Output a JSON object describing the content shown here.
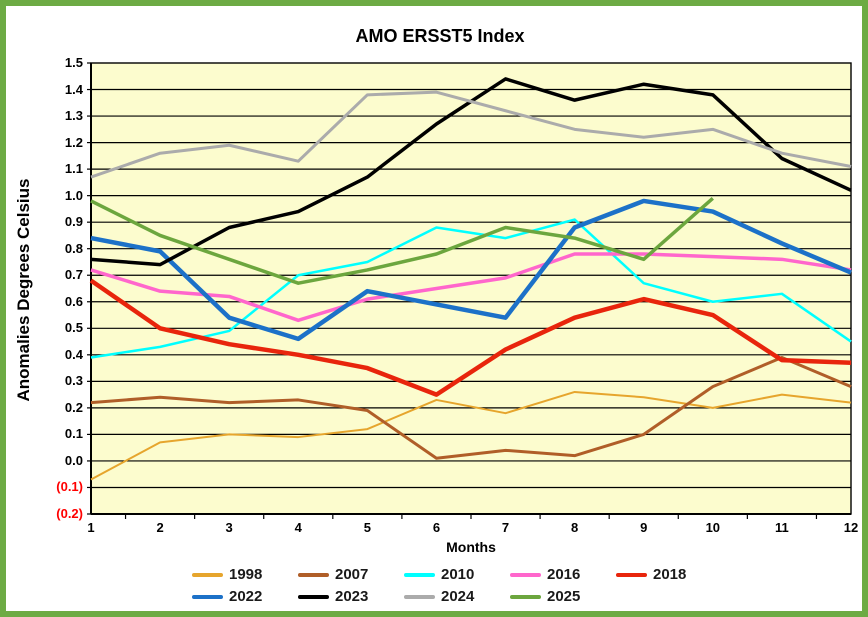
{
  "frame_color": "#6DAB44",
  "chart_data": {
    "type": "line",
    "title": "AMO ERSST5 Index",
    "xlabel": "Months",
    "ylabel": "Anomalies Degrees Celsius",
    "x": [
      1,
      2,
      3,
      4,
      5,
      6,
      7,
      8,
      9,
      10,
      11,
      12
    ],
    "x_tick_labels": [
      "1",
      "2",
      "3",
      "4",
      "5",
      "6",
      "7",
      "8",
      "9",
      "10",
      "11",
      "12"
    ],
    "y_tick_labels": [
      "1.5",
      "1.4",
      "1.3",
      "1.2",
      "1.1",
      "1.0",
      "0.9",
      "0.8",
      "0.7",
      "0.6",
      "0.5",
      "0.4",
      "0.3",
      "0.2",
      "0.1",
      "0.0",
      "(0.1)",
      "(0.2)"
    ],
    "ylim": [
      -0.2,
      1.5
    ],
    "grid": "horizontal every 0.1",
    "plot_bg": "#FCFCCE",
    "negative_label_color": "#FF0000",
    "legend_position": "bottom",
    "series": [
      {
        "name": "1998",
        "color": "#E6A52D",
        "width": 2,
        "values": [
          -0.07,
          0.07,
          0.1,
          0.09,
          0.12,
          0.23,
          0.18,
          0.26,
          0.24,
          0.2,
          0.25,
          0.22
        ]
      },
      {
        "name": "2007",
        "color": "#B05E28",
        "width": 3,
        "values": [
          0.22,
          0.24,
          0.22,
          0.23,
          0.19,
          0.01,
          0.04,
          0.02,
          0.1,
          0.28,
          0.39,
          0.28
        ]
      },
      {
        "name": "2010",
        "color": "#00FFFF",
        "width": 2.5,
        "values": [
          0.39,
          0.43,
          0.49,
          0.7,
          0.75,
          0.88,
          0.84,
          0.91,
          0.67,
          0.6,
          0.63,
          0.45
        ]
      },
      {
        "name": "2016",
        "color": "#FF66CC",
        "width": 3.5,
        "values": [
          0.72,
          0.64,
          0.62,
          0.53,
          0.61,
          0.65,
          0.69,
          0.78,
          0.78,
          0.77,
          0.76,
          0.72
        ]
      },
      {
        "name": "2018",
        "color": "#E8250C",
        "width": 4.5,
        "values": [
          0.68,
          0.5,
          0.44,
          0.4,
          0.35,
          0.25,
          0.42,
          0.54,
          0.61,
          0.55,
          0.38,
          0.37
        ]
      },
      {
        "name": "2022",
        "color": "#1C71C8",
        "width": 4.5,
        "values": [
          0.84,
          0.79,
          0.54,
          0.46,
          0.64,
          0.59,
          0.54,
          0.88,
          0.98,
          0.94,
          0.82,
          0.71
        ]
      },
      {
        "name": "2023",
        "color": "#000000",
        "width": 3.5,
        "values": [
          0.76,
          0.74,
          0.88,
          0.94,
          1.07,
          1.27,
          1.44,
          1.36,
          1.42,
          1.38,
          1.14,
          1.02
        ]
      },
      {
        "name": "2024",
        "color": "#ABABAB",
        "width": 3,
        "values": [
          1.07,
          1.16,
          1.19,
          1.13,
          1.38,
          1.39,
          1.32,
          1.25,
          1.22,
          1.25,
          1.16,
          1.11
        ]
      },
      {
        "name": "2025",
        "color": "#6CA63E",
        "width": 3.5,
        "values": [
          0.98,
          0.85,
          0.76,
          0.67,
          0.72,
          0.78,
          0.88,
          0.84,
          0.76,
          0.99,
          null,
          null
        ]
      }
    ]
  }
}
